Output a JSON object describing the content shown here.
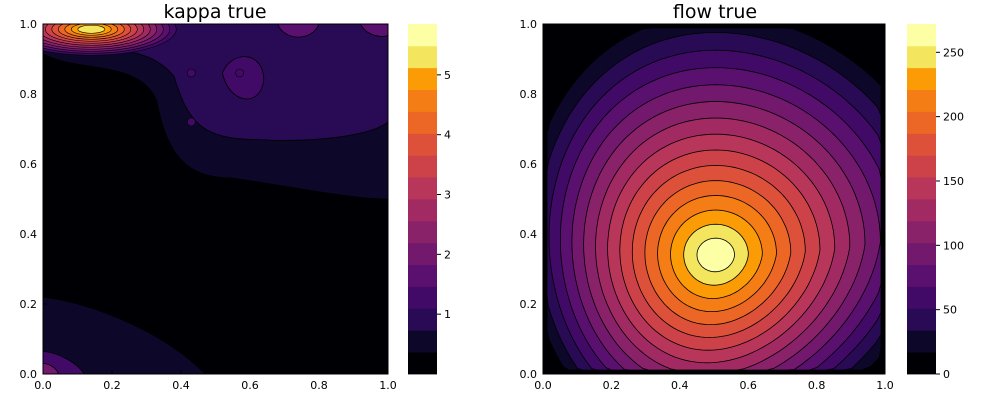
{
  "chart_data": [
    {
      "type": "contour",
      "title": "kappa true",
      "xlabel": "",
      "ylabel": "",
      "xlim": [
        0,
        1
      ],
      "ylim": [
        0,
        1
      ],
      "xticks": [
        "0.0",
        "0.2",
        "0.4",
        "0.6",
        "0.8",
        "1.0"
      ],
      "yticks": [
        "0.0",
        "0.2",
        "0.4",
        "0.6",
        "0.8",
        "1.0"
      ],
      "colormap": "inferno",
      "colorbar": {
        "range": [
          0,
          5.85
        ],
        "levels": 16,
        "tick_values": [
          1,
          2,
          3,
          4,
          5
        ],
        "tick_labels": [
          "1",
          "2",
          "3",
          "4",
          "5"
        ]
      },
      "features": [
        {
          "name": "peak",
          "x": 0.14,
          "y": 0.98,
          "value": 5.8,
          "sx": 0.06,
          "sy": 0.035
        },
        {
          "name": "upper plateau",
          "x": 0.55,
          "y": 0.85,
          "value": 1.7,
          "sx": 0.25,
          "sy": 0.12
        },
        {
          "name": "bottom-left lobe",
          "x": 0.0,
          "y": 0.02,
          "value": 1.5,
          "sx": 0.07,
          "sy": 0.05
        },
        {
          "name": "low region",
          "x": 0.5,
          "y": 0.4,
          "value": 0.2,
          "sx": 0.5,
          "sy": 0.3
        }
      ]
    },
    {
      "type": "contour",
      "title": "flow true",
      "xlabel": "",
      "ylabel": "",
      "xlim": [
        0,
        1
      ],
      "ylim": [
        0,
        1
      ],
      "xticks": [
        "0.0",
        "0.2",
        "0.4",
        "0.6",
        "0.8",
        "1.0"
      ],
      "yticks": [
        "0.0",
        "0.2",
        "0.4",
        "0.6",
        "0.8",
        "1.0"
      ],
      "colormap": "inferno",
      "colorbar": {
        "range": [
          0,
          272
        ],
        "levels": 16,
        "tick_values": [
          0,
          50,
          100,
          150,
          200,
          250
        ],
        "tick_labels": [
          "0",
          "50",
          "100",
          "150",
          "200",
          "250"
        ]
      },
      "features": [
        {
          "name": "maximum",
          "x": 0.5,
          "y": 0.34,
          "value": 272
        },
        {
          "name": "boundary",
          "value": 0
        }
      ]
    }
  ]
}
